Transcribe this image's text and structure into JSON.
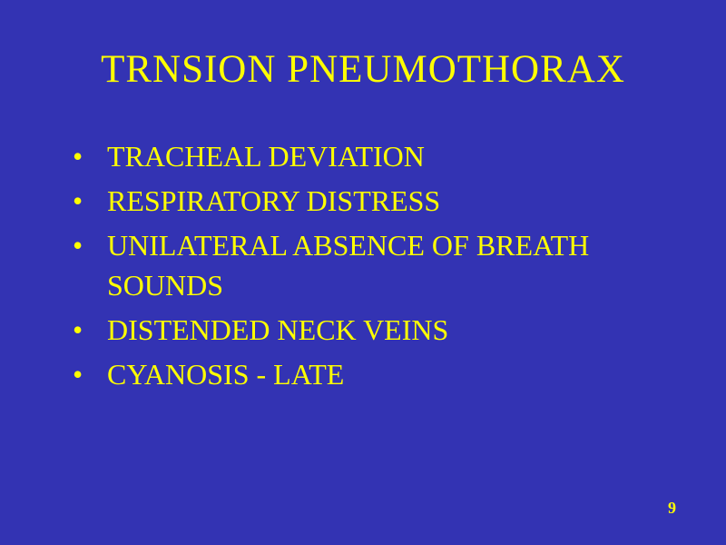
{
  "slide": {
    "title": "TRNSION PNEUMOTHORAX",
    "bullets": [
      "TRACHEAL DEVIATION",
      "RESPIRATORY DISTRESS",
      "UNILATERAL ABSENCE OF BREATH SOUNDS",
      "DISTENDED NECK VEINS",
      "CYANOSIS  -  LATE"
    ],
    "page_number": "9"
  },
  "styling": {
    "background_color": "#3333b3",
    "text_color": "#ffff00",
    "title_fontsize": 43,
    "bullet_fontsize": 32,
    "page_number_fontsize": 18,
    "font_family": "Times New Roman"
  }
}
